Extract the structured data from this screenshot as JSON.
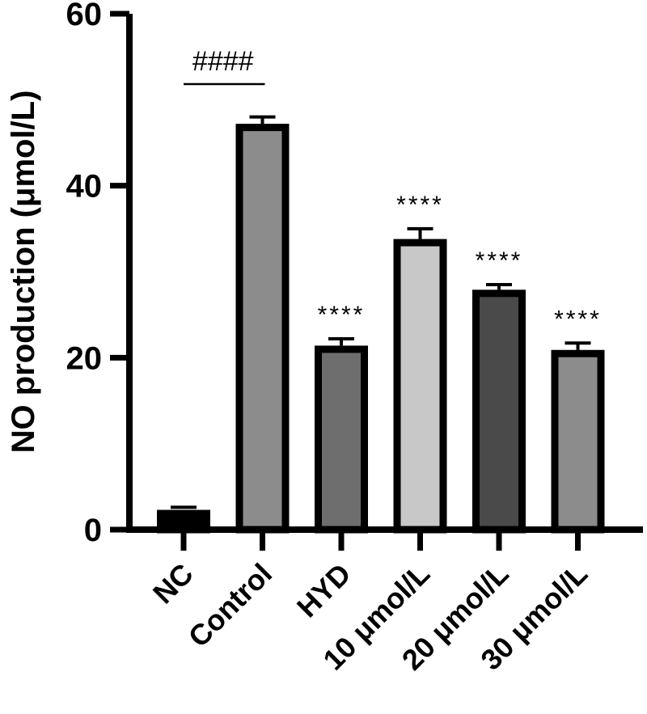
{
  "chart_data": {
    "type": "bar",
    "title": "",
    "xlabel": "",
    "ylabel": "NO production (μmol/L)",
    "ylim": [
      0,
      60
    ],
    "yticks": [
      0,
      20,
      40,
      60
    ],
    "grid": false,
    "legend": null,
    "categories": [
      "NC",
      "Control",
      "HYD",
      "10 μmol/L",
      "20 μmol/L",
      "30 μmol/L"
    ],
    "values": [
      2.3,
      47.2,
      21.4,
      33.8,
      27.9,
      20.9
    ],
    "errors": [
      0.3,
      0.8,
      0.8,
      1.2,
      0.6,
      0.8
    ],
    "bar_colors": [
      "#000000",
      "#8c8c8c",
      "#6e6e6e",
      "#c8c8c8",
      "#4a4a4a",
      "#8c8c8c"
    ],
    "annotations": [
      {
        "text": "####",
        "between": [
          "NC",
          "Control"
        ]
      },
      {
        "text": "****",
        "category": "HYD"
      },
      {
        "text": "****",
        "category": "10 μmol/L"
      },
      {
        "text": "****",
        "category": "20 μmol/L"
      },
      {
        "text": "****",
        "category": "30 μmol/L"
      }
    ]
  }
}
